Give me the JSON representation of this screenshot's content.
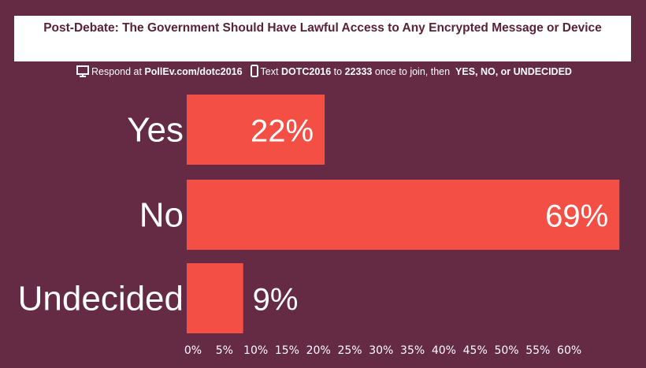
{
  "header": {
    "title": "Post-Debate: The Government Should Have Lawful Access to Any Encrypted Message or Device"
  },
  "instructions": {
    "web_prefix": "Respond at",
    "web_url": "PollEv.com/dotc2016",
    "text_prefix": "Text",
    "code": "DOTC2016",
    "to": "to",
    "number": "22333",
    "suffix": "once to join, then",
    "options": "YES, NO, or UNDECIDED"
  },
  "colors": {
    "background": "#652a44",
    "bar": "#f44f45",
    "title": "#5a2237"
  },
  "chart_data": {
    "type": "bar",
    "orientation": "horizontal",
    "title": "Post-Debate: The Government Should Have Lawful Access to Any Encrypted Message or Device",
    "categories": [
      "Yes",
      "No",
      "Undecided"
    ],
    "values": [
      22,
      69,
      9
    ],
    "value_labels": [
      "22%",
      "69%",
      "9%"
    ],
    "xlim": [
      0,
      69
    ],
    "xticks": [
      "0%",
      "5%",
      "10%",
      "15%",
      "20%",
      "25%",
      "30%",
      "35%",
      "40%",
      "45%",
      "50%",
      "55%",
      "60%"
    ],
    "xtick_values": [
      0,
      5,
      10,
      15,
      20,
      25,
      30,
      35,
      40,
      45,
      50,
      55,
      60
    ],
    "grid": false
  }
}
